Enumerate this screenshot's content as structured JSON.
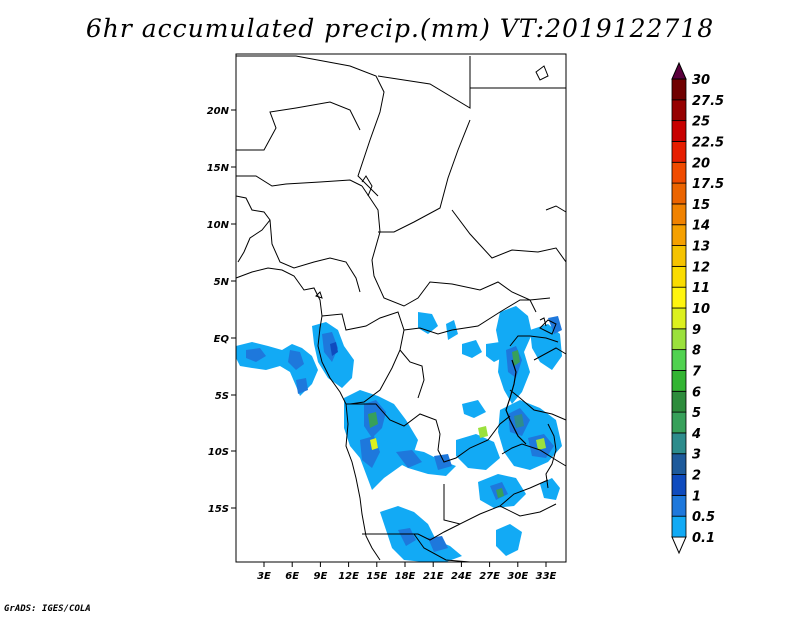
{
  "title": "6hr accumulated precip.(mm) VT:2019122718",
  "footer": "GrADS: IGES/COLA",
  "map": {
    "lat_labels": [
      "20N",
      "15N",
      "10N",
      "5N",
      "EQ",
      "5S",
      "10S",
      "15S"
    ],
    "lon_labels": [
      "3E",
      "6E",
      "9E",
      "12E",
      "15E",
      "18E",
      "21E",
      "24E",
      "27E",
      "30E",
      "33E"
    ]
  },
  "colorbar": {
    "labels": [
      "0.1",
      "0.5",
      "1",
      "2",
      "3",
      "4",
      "5",
      "6",
      "7",
      "8",
      "9",
      "10",
      "11",
      "12",
      "13",
      "14",
      "15",
      "17.5",
      "20",
      "22.5",
      "25",
      "27.5",
      "30"
    ],
    "colors": [
      "#ffffff",
      "#12aaf5",
      "#1e78dc",
      "#0f4bbe",
      "#1e5a9b",
      "#2d8c8c",
      "#37a05a",
      "#2d8c3c",
      "#32b432",
      "#50d250",
      "#9be13c",
      "#dcf01e",
      "#fff50f",
      "#fadc00",
      "#f5c300",
      "#f5a000",
      "#f08200",
      "#eb6400",
      "#f04b00",
      "#e61e00",
      "#c80000",
      "#960000",
      "#700000",
      "#5a003c"
    ]
  }
}
